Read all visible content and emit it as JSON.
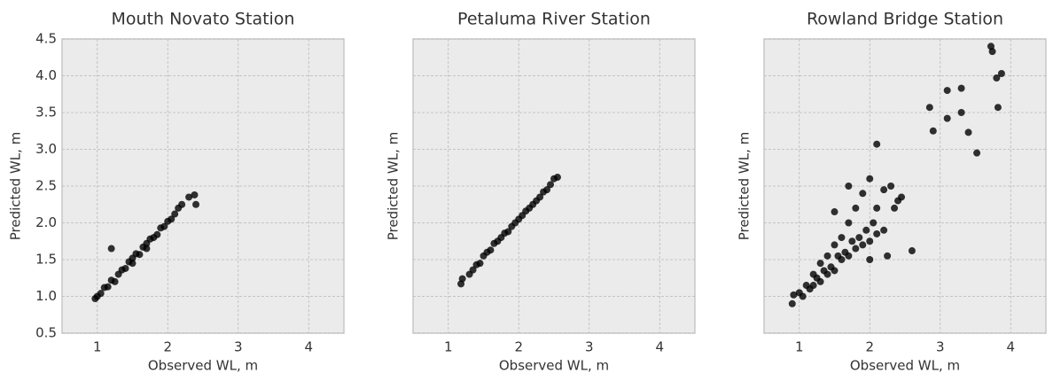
{
  "chart_data": [
    {
      "type": "scatter",
      "title": "Mouth Novato Station",
      "xlabel": "Observed WL, m",
      "ylabel": "Predicted WL, m",
      "color": "#000000",
      "grid": true,
      "show_ytick_labels": true,
      "xlim": [
        0.5,
        4.5
      ],
      "ylim": [
        0.5,
        4.5
      ],
      "xticks": [
        1,
        2,
        3,
        4
      ],
      "yticks": [
        0.5,
        {
          "value": 1,
          "label": "1.0"
        },
        1.5,
        {
          "value": 2,
          "label": "2.0"
        },
        2.5,
        {
          "value": 3,
          "label": "3.0"
        },
        3.5,
        {
          "value": 4,
          "label": "4.0"
        },
        4.5
      ],
      "x": [
        0.97,
        1.0,
        1.05,
        1.1,
        1.15,
        1.2,
        1.2,
        1.25,
        1.3,
        1.35,
        1.4,
        1.45,
        1.5,
        1.5,
        1.55,
        1.6,
        1.65,
        1.7,
        1.7,
        1.75,
        1.8,
        1.85,
        1.9,
        1.95,
        2.0,
        2.05,
        2.1,
        2.15,
        2.2,
        2.3,
        2.38,
        2.4
      ],
      "y": [
        0.97,
        1.0,
        1.04,
        1.12,
        1.13,
        1.65,
        1.22,
        1.2,
        1.3,
        1.36,
        1.38,
        1.47,
        1.52,
        1.45,
        1.58,
        1.57,
        1.67,
        1.72,
        1.65,
        1.78,
        1.8,
        1.84,
        1.93,
        1.95,
        2.02,
        2.05,
        2.12,
        2.2,
        2.25,
        2.35,
        2.38,
        2.25
      ]
    },
    {
      "type": "scatter",
      "title": "Petaluma River Station",
      "xlabel": "Observed WL, m",
      "ylabel": "Predicted WL, m",
      "color": "#000000",
      "grid": true,
      "show_ytick_labels": false,
      "xlim": [
        0.5,
        4.5
      ],
      "ylim": [
        0.5,
        4.5
      ],
      "xticks": [
        1,
        2,
        3,
        4
      ],
      "yticks": [
        0.5,
        {
          "value": 1,
          "label": "1.0"
        },
        1.5,
        {
          "value": 2,
          "label": "2.0"
        },
        2.5,
        {
          "value": 3,
          "label": "3.0"
        },
        3.5,
        {
          "value": 4,
          "label": "4.0"
        },
        4.5
      ],
      "x": [
        1.18,
        1.2,
        1.3,
        1.35,
        1.4,
        1.45,
        1.5,
        1.55,
        1.6,
        1.65,
        1.7,
        1.75,
        1.8,
        1.85,
        1.9,
        1.95,
        2.0,
        2.05,
        2.1,
        2.15,
        2.2,
        2.25,
        2.3,
        2.35,
        2.4,
        2.45,
        2.5,
        2.55
      ],
      "y": [
        1.17,
        1.24,
        1.3,
        1.36,
        1.43,
        1.45,
        1.55,
        1.6,
        1.63,
        1.72,
        1.75,
        1.8,
        1.86,
        1.88,
        1.95,
        2.0,
        2.05,
        2.1,
        2.16,
        2.2,
        2.25,
        2.3,
        2.35,
        2.42,
        2.45,
        2.52,
        2.6,
        2.62
      ]
    },
    {
      "type": "scatter",
      "title": "Rowland Bridge Station",
      "xlabel": "Observed WL, m",
      "ylabel": "Predicted WL, m",
      "color": "#000000",
      "grid": true,
      "show_ytick_labels": false,
      "xlim": [
        0.5,
        4.5
      ],
      "ylim": [
        0.5,
        4.5
      ],
      "xticks": [
        1,
        2,
        3,
        4
      ],
      "yticks": [
        0.5,
        {
          "value": 1,
          "label": "1.0"
        },
        1.5,
        {
          "value": 2,
          "label": "2.0"
        },
        2.5,
        {
          "value": 3,
          "label": "3.0"
        },
        3.5,
        {
          "value": 4,
          "label": "4.0"
        },
        4.5
      ],
      "x": [
        0.9,
        0.92,
        1.0,
        1.05,
        1.1,
        1.15,
        1.2,
        1.2,
        1.25,
        1.3,
        1.3,
        1.35,
        1.4,
        1.4,
        1.45,
        1.5,
        1.5,
        1.55,
        1.6,
        1.6,
        1.65,
        1.7,
        1.7,
        1.75,
        1.8,
        1.8,
        1.85,
        1.9,
        1.9,
        1.95,
        2.0,
        2.0,
        2.05,
        2.1,
        2.1,
        2.2,
        2.2,
        2.3,
        2.35,
        2.4,
        2.45,
        2.1,
        2.6,
        2.85,
        2.9,
        3.1,
        3.1,
        3.3,
        3.3,
        3.4,
        3.52,
        3.72,
        3.74,
        3.8,
        3.82,
        3.87,
        1.5,
        1.7,
        2.0,
        2.25
      ],
      "y": [
        0.9,
        1.02,
        1.05,
        1.0,
        1.15,
        1.1,
        1.3,
        1.15,
        1.25,
        1.45,
        1.2,
        1.35,
        1.55,
        1.3,
        1.4,
        1.7,
        1.35,
        1.55,
        1.8,
        1.5,
        1.6,
        2.0,
        1.55,
        1.75,
        2.2,
        1.65,
        1.8,
        2.4,
        1.7,
        1.9,
        2.6,
        1.75,
        2.0,
        2.2,
        1.85,
        2.45,
        1.9,
        2.5,
        2.2,
        2.3,
        2.35,
        3.07,
        1.62,
        3.57,
        3.25,
        3.8,
        3.42,
        3.83,
        3.5,
        3.23,
        2.95,
        4.4,
        4.33,
        3.97,
        3.57,
        4.03,
        2.15,
        2.5,
        1.5,
        1.55
      ]
    }
  ]
}
